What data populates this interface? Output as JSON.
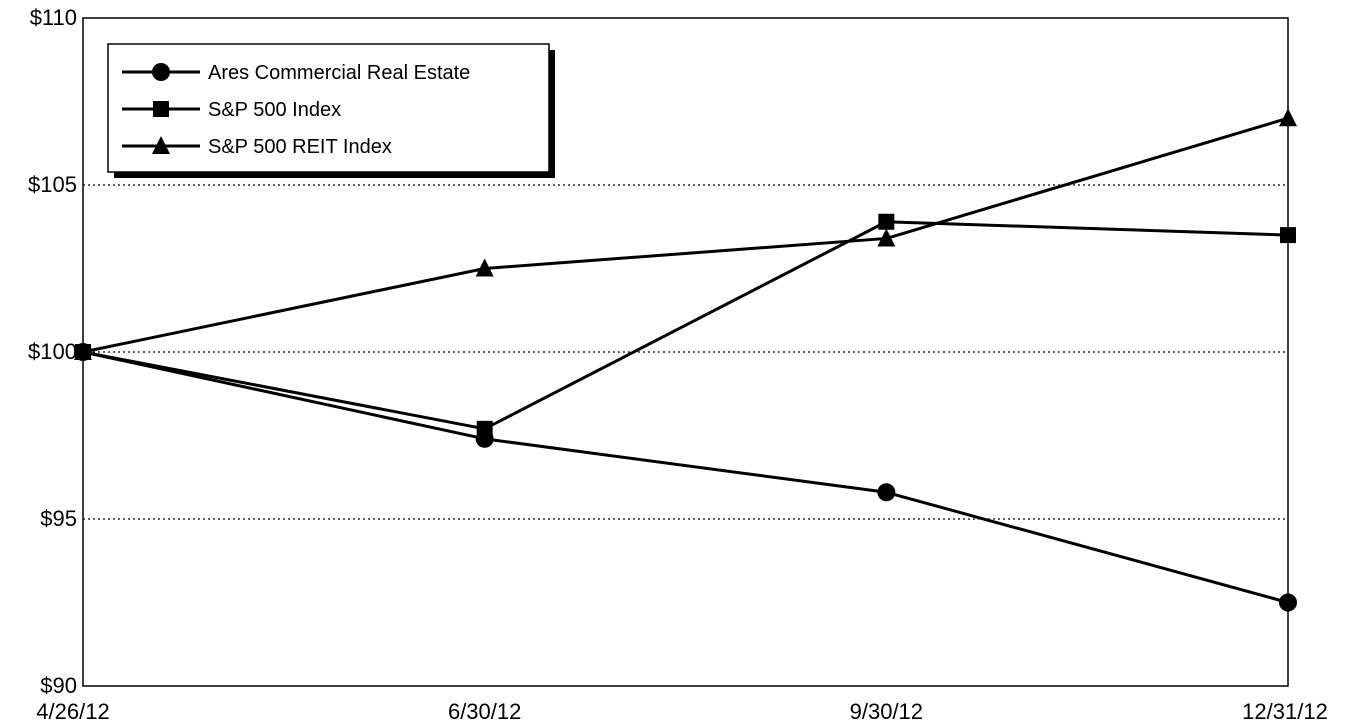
{
  "chart_data": {
    "type": "line",
    "title": "",
    "xlabel": "",
    "ylabel": "",
    "categories": [
      "4/26/12",
      "6/30/12",
      "9/30/12",
      "12/31/12"
    ],
    "ylim": [
      90,
      110
    ],
    "y_ticks": [
      {
        "value": 90,
        "label": "$90"
      },
      {
        "value": 95,
        "label": "$95"
      },
      {
        "value": 100,
        "label": "$100"
      },
      {
        "value": 105,
        "label": "$105"
      },
      {
        "value": 110,
        "label": "$110"
      }
    ],
    "grid": "horizontal dotted at $95, $100, $105",
    "legend_position": "top-left",
    "series": [
      {
        "name": "Ares Commercial Real Estate",
        "marker": "circle",
        "values": [
          100.0,
          97.4,
          95.8,
          92.5
        ]
      },
      {
        "name": "S&P 500 Index",
        "marker": "square",
        "values": [
          100.0,
          97.7,
          103.9,
          103.5
        ]
      },
      {
        "name": "S&P 500 REIT Index",
        "marker": "triangle",
        "values": [
          100.0,
          102.5,
          103.4,
          107.0
        ]
      }
    ],
    "line_color": "#000000"
  }
}
